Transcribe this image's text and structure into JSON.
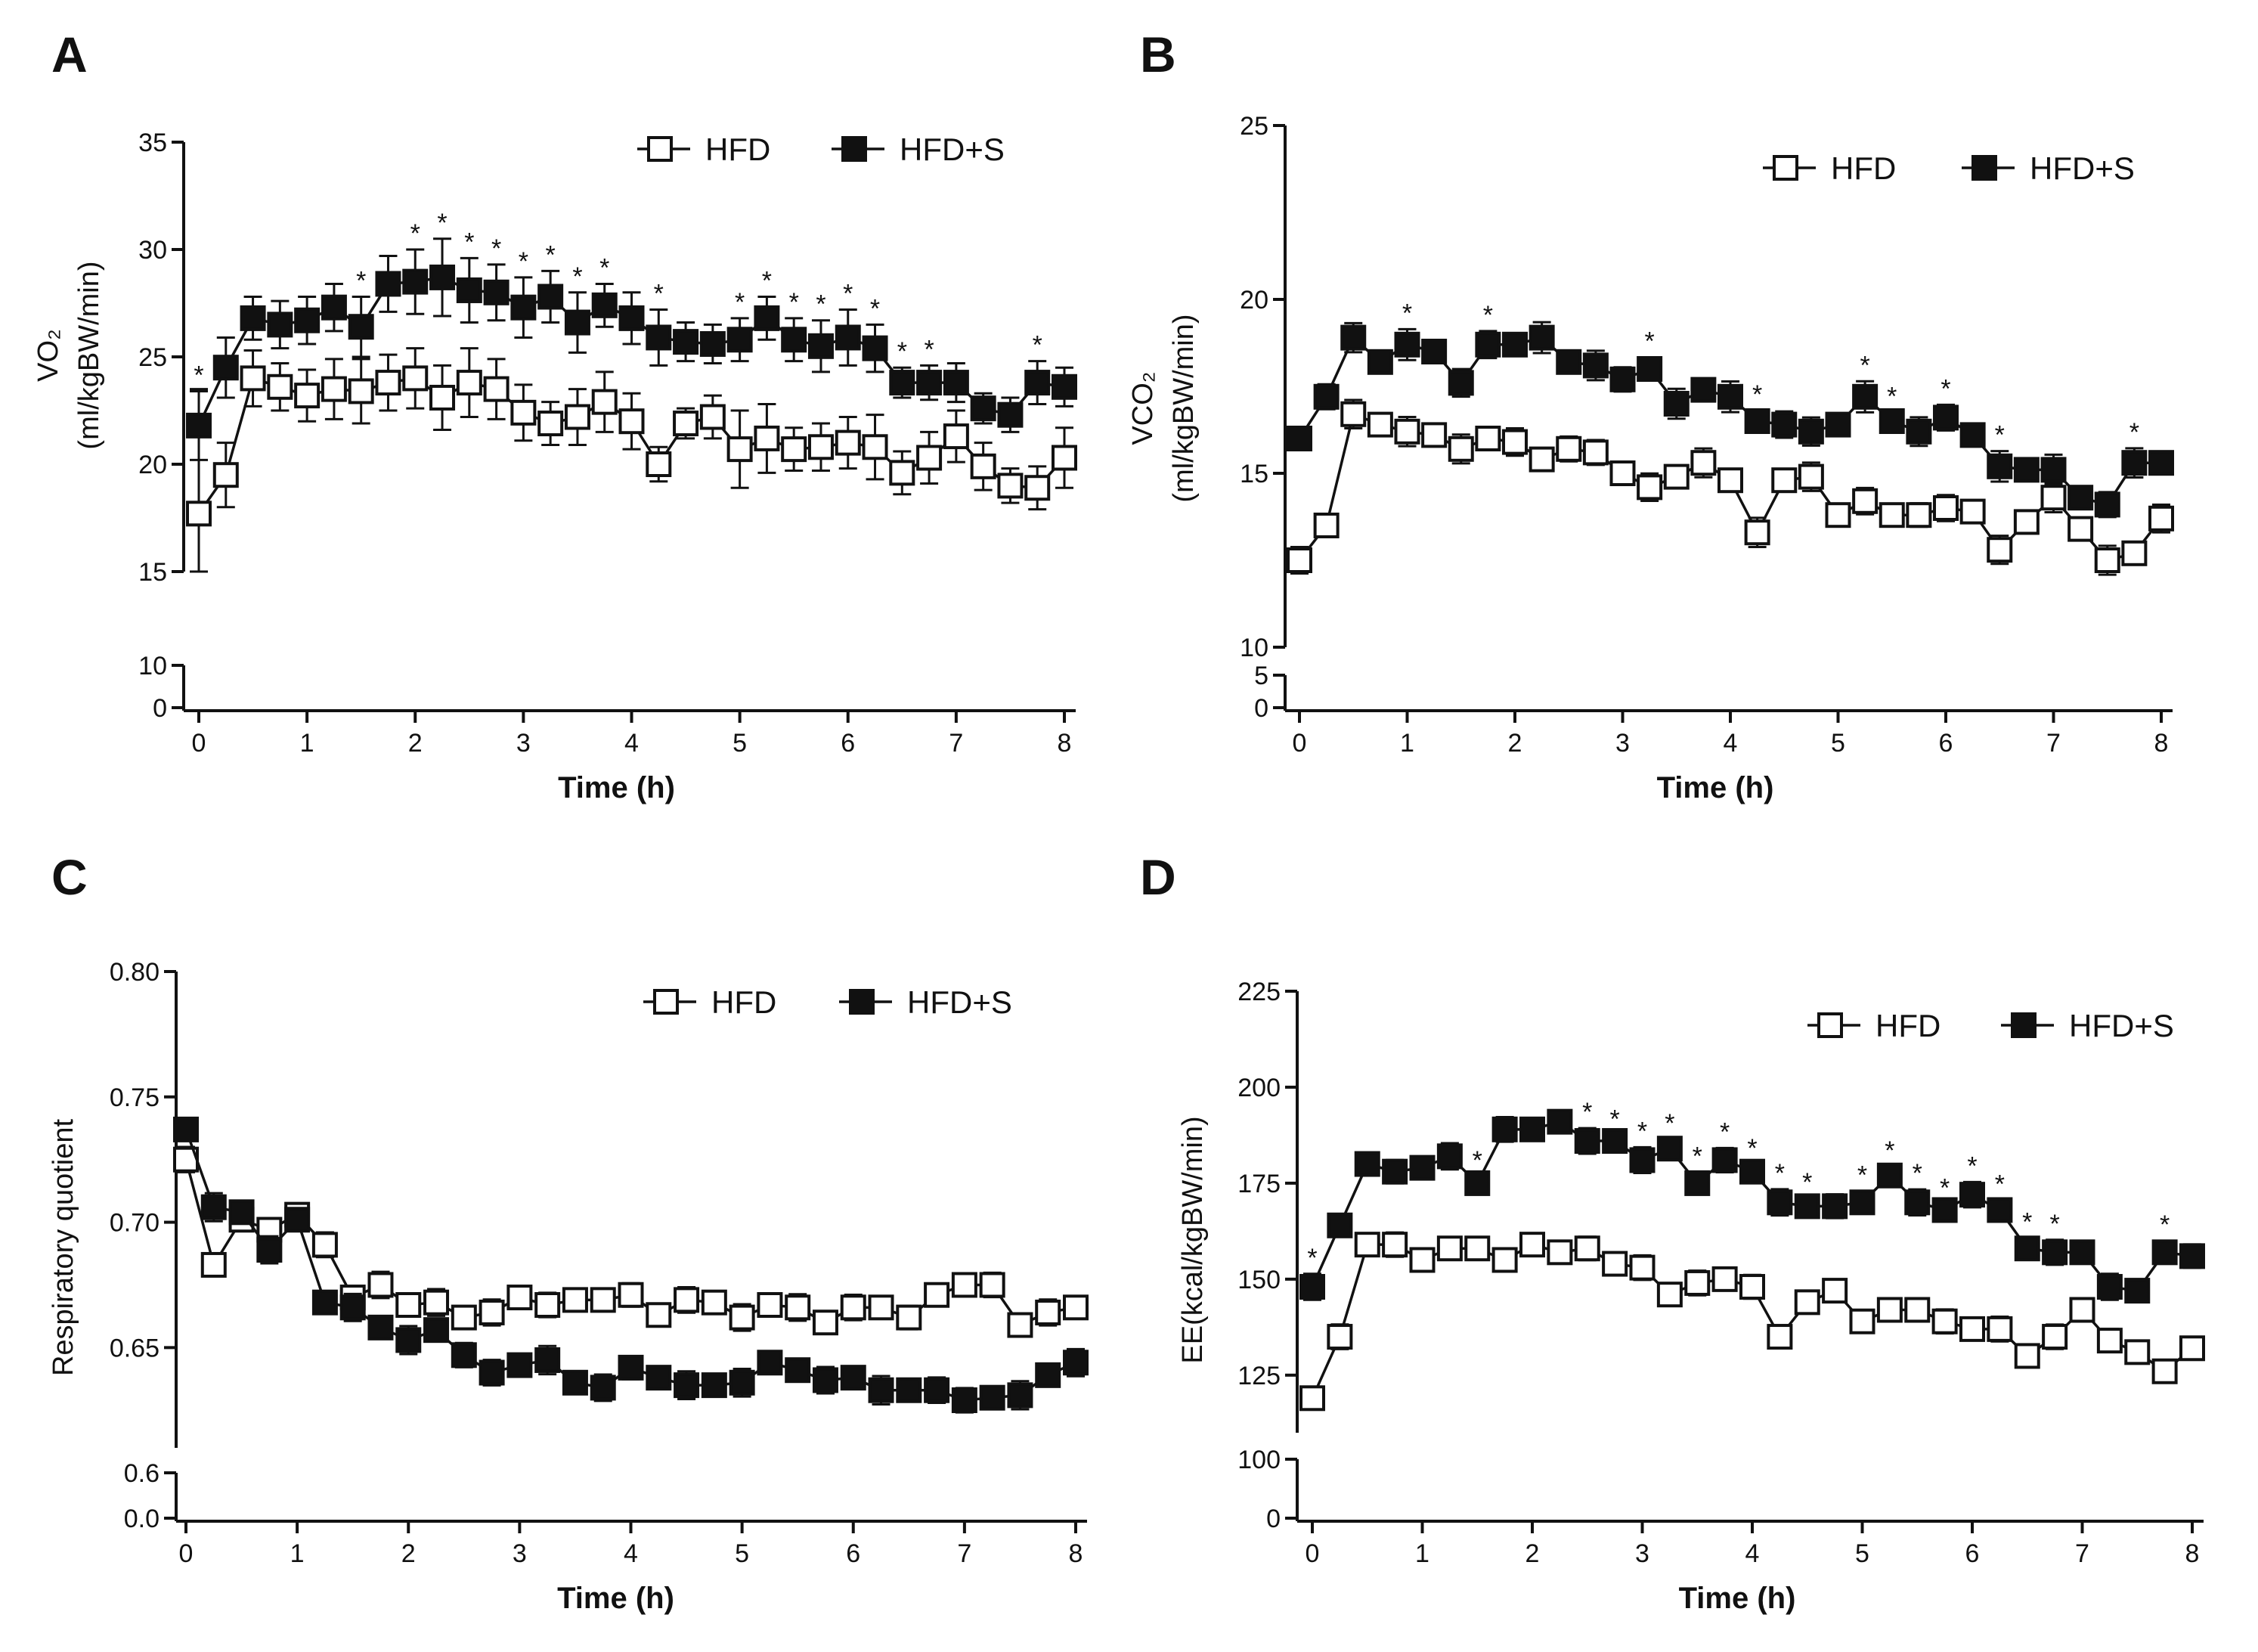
{
  "chart_data": [
    {
      "panel": "A",
      "type": "line",
      "ylabel_lines": [
        "VO₂",
        "(ml/kgBW/min)"
      ],
      "xlabel": "Time (h)",
      "x_ticks": [
        "0",
        "1",
        "2",
        "3",
        "4",
        "5",
        "6",
        "7",
        "8"
      ],
      "xlim": [
        0,
        8
      ],
      "y_broken": true,
      "y_lower_ticks": [
        "0",
        "10"
      ],
      "y_upper_ticks": [
        "15",
        "20",
        "25",
        "30",
        "35"
      ],
      "ylim_upper": [
        15,
        35
      ],
      "legend": [
        "HFD",
        "HFD+S"
      ],
      "x": [
        0,
        0.25,
        0.5,
        0.75,
        1,
        1.25,
        1.5,
        1.75,
        2,
        2.25,
        2.5,
        2.75,
        3,
        3.25,
        3.5,
        3.75,
        4,
        4.25,
        4.5,
        4.75,
        5,
        5.25,
        5.5,
        5.75,
        6,
        6.25,
        6.5,
        6.75,
        7,
        7.25,
        7.5,
        7.75,
        8
      ],
      "series": [
        {
          "name": "HFD",
          "marker": "open-square",
          "values": [
            17.7,
            19.5,
            24,
            23.6,
            23.2,
            23.5,
            23.4,
            23.8,
            24,
            23.1,
            23.8,
            23.5,
            22.4,
            21.9,
            22.2,
            22.9,
            22,
            20,
            21.9,
            22.2,
            20.7,
            21.2,
            20.7,
            20.8,
            21,
            20.8,
            19.6,
            20.3,
            21.3,
            19.9,
            19,
            18.9,
            20.3
          ],
          "errors": [
            5.8,
            1.5,
            1.3,
            1.1,
            1.2,
            1.4,
            1.5,
            1.3,
            1.4,
            1.5,
            1.6,
            1.4,
            1.3,
            1.0,
            1.3,
            1.4,
            1.3,
            0.8,
            0.7,
            1.0,
            1.8,
            1.6,
            1.0,
            1.1,
            1.2,
            1.5,
            1.0,
            1.2,
            1.2,
            1.1,
            0.8,
            1.0,
            1.4
          ]
        },
        {
          "name": "HFD+S",
          "marker": "filled-square",
          "values": [
            21.8,
            24.5,
            26.8,
            26.5,
            26.7,
            27.3,
            26.4,
            28.4,
            28.5,
            28.7,
            28.1,
            28,
            27.3,
            27.8,
            26.6,
            27.4,
            26.8,
            25.9,
            25.7,
            25.6,
            25.8,
            26.8,
            25.8,
            25.5,
            25.9,
            25.4,
            23.8,
            23.8,
            23.8,
            22.6,
            22.3,
            23.8,
            23.6
          ]
        },
        {
          "name": "HFD+S_err",
          "values": [
            1.6,
            1.4,
            1.0,
            1.1,
            1.1,
            1.1,
            1.4,
            1.3,
            1.5,
            1.8,
            1.5,
            1.3,
            1.4,
            1.2,
            1.4,
            1.0,
            1.2,
            1.3,
            0.9,
            0.9,
            1.0,
            1.0,
            1.0,
            1.2,
            1.3,
            1.1,
            0.7,
            0.8,
            0.9,
            0.7,
            0.8,
            1.0,
            0.9
          ]
        }
      ],
      "significance_marks": [
        0,
        1.5,
        2,
        2.25,
        2.5,
        2.75,
        3,
        3.25,
        3.5,
        3.75,
        4.25,
        5,
        5.25,
        5.5,
        5.75,
        6,
        6.25,
        6.5,
        6.75,
        7.75
      ],
      "significance_symbol": "*"
    },
    {
      "panel": "B",
      "type": "line",
      "ylabel_lines": [
        "VCO₂",
        "(ml/kgBW/min)"
      ],
      "xlabel": "Time (h)",
      "x_ticks": [
        "0",
        "1",
        "2",
        "3",
        "4",
        "5",
        "6",
        "7",
        "8"
      ],
      "xlim": [
        0,
        8
      ],
      "y_broken": true,
      "y_lower_ticks": [
        "0",
        "5"
      ],
      "y_upper_ticks": [
        "10",
        "15",
        "20",
        "25"
      ],
      "ylim_upper": [
        10,
        25
      ],
      "legend": [
        "HFD",
        "HFD+S"
      ],
      "x": [
        0,
        0.25,
        0.5,
        0.75,
        1,
        1.25,
        1.5,
        1.75,
        2,
        2.25,
        2.5,
        2.75,
        3,
        3.25,
        3.5,
        3.75,
        4,
        4.25,
        4.5,
        4.75,
        5,
        5.25,
        5.5,
        5.75,
        6,
        6.25,
        6.5,
        6.75,
        7,
        7.25,
        7.5,
        7.75,
        8
      ],
      "series": [
        {
          "name": "HFD",
          "marker": "open-square",
          "values": [
            12.5,
            13.5,
            16.7,
            16.4,
            16.2,
            16.1,
            15.7,
            16,
            15.9,
            15.4,
            15.7,
            15.6,
            15,
            14.6,
            14.9,
            15.3,
            14.8,
            13.3,
            14.8,
            14.9,
            13.8,
            14.2,
            13.8,
            13.8,
            14,
            13.9,
            12.8,
            13.6,
            14.3,
            13.4,
            12.5,
            12.7,
            13.7
          ]
        },
        {
          "name": "HFD+S",
          "marker": "filled-square",
          "values": [
            16,
            17.2,
            18.9,
            18.2,
            18.7,
            18.5,
            17.6,
            18.7,
            18.7,
            18.9,
            18.2,
            18.1,
            17.7,
            18,
            17,
            17.4,
            17.2,
            16.5,
            16.4,
            16.2,
            16.4,
            17.2,
            16.5,
            16.2,
            16.6,
            16.1,
            15.2,
            15.1,
            15.1,
            14.3,
            14.1,
            15.3,
            15.3
          ]
        }
      ],
      "significance_marks": [
        1,
        1.75,
        3.25,
        4.25,
        5.25,
        5.5,
        6,
        6.5,
        7.75
      ],
      "significance_symbol": "*"
    },
    {
      "panel": "C",
      "type": "line",
      "ylabel_lines": [
        "Respiratory quotient"
      ],
      "xlabel": "Time (h)",
      "x_ticks": [
        "0",
        "1",
        "2",
        "3",
        "4",
        "5",
        "6",
        "7",
        "8"
      ],
      "xlim": [
        0,
        8
      ],
      "y_broken": true,
      "y_lower_ticks": [
        "0.0",
        "0.6"
      ],
      "y_upper_ticks": [
        "0.65",
        "0.70",
        "0.75",
        "0.80"
      ],
      "ylim_upper": [
        0.61,
        0.8
      ],
      "legend": [
        "HFD",
        "HFD+S"
      ],
      "x": [
        0,
        0.25,
        0.5,
        0.75,
        1,
        1.25,
        1.5,
        1.75,
        2,
        2.25,
        2.5,
        2.75,
        3,
        3.25,
        3.5,
        3.75,
        4,
        4.25,
        4.5,
        4.75,
        5,
        5.25,
        5.5,
        5.75,
        6,
        6.25,
        6.5,
        6.75,
        7,
        7.25,
        7.5,
        7.75,
        8
      ],
      "series": [
        {
          "name": "HFD",
          "marker": "open-square",
          "values": [
            0.725,
            0.683,
            0.701,
            0.697,
            0.703,
            0.691,
            0.67,
            0.675,
            0.667,
            0.668,
            0.662,
            0.664,
            0.67,
            0.667,
            0.669,
            0.669,
            0.671,
            0.663,
            0.669,
            0.668,
            0.662,
            0.667,
            0.666,
            0.66,
            0.666,
            0.666,
            0.662,
            0.671,
            0.675,
            0.675,
            0.659,
            0.664,
            0.666
          ]
        },
        {
          "name": "HFD+S",
          "marker": "filled-square",
          "values": [
            0.737,
            0.706,
            0.704,
            0.689,
            0.701,
            0.668,
            0.666,
            0.658,
            0.653,
            0.657,
            0.647,
            0.64,
            0.643,
            0.645,
            0.636,
            0.634,
            0.642,
            0.638,
            0.635,
            0.635,
            0.636,
            0.644,
            0.641,
            0.637,
            0.638,
            0.633,
            0.633,
            0.633,
            0.629,
            0.63,
            0.631,
            0.639,
            0.644
          ]
        }
      ]
    },
    {
      "panel": "D",
      "type": "line",
      "ylabel_lines": [
        "EE(kcal/kgBW/min)"
      ],
      "xlabel": "Time (h)",
      "x_ticks": [
        "0",
        "1",
        "2",
        "3",
        "4",
        "5",
        "6",
        "7",
        "8"
      ],
      "xlim": [
        0,
        8
      ],
      "y_broken": true,
      "y_lower_ticks": [
        "0",
        "100"
      ],
      "y_upper_ticks": [
        "125",
        "150",
        "175",
        "200",
        "225"
      ],
      "ylim_upper": [
        110,
        225
      ],
      "legend": [
        "HFD",
        "HFD+S"
      ],
      "x": [
        0,
        0.25,
        0.5,
        0.75,
        1,
        1.25,
        1.5,
        1.75,
        2,
        2.25,
        2.5,
        2.75,
        3,
        3.25,
        3.5,
        3.75,
        4,
        4.25,
        4.5,
        4.75,
        5,
        5.25,
        5.5,
        5.75,
        6,
        6.25,
        6.5,
        6.75,
        7,
        7.25,
        7.5,
        7.75,
        8
      ],
      "series": [
        {
          "name": "HFD",
          "marker": "open-square",
          "values": [
            119,
            135,
            159,
            159,
            155,
            158,
            158,
            155,
            159,
            157,
            158,
            154,
            153,
            146,
            149,
            150,
            148,
            135,
            144,
            147,
            139,
            142,
            142,
            139,
            137,
            137,
            130,
            135,
            142,
            134,
            131,
            126,
            132
          ]
        },
        {
          "name": "HFD+S",
          "marker": "filled-square",
          "values": [
            148,
            164,
            180,
            178,
            179,
            182,
            175,
            189,
            189,
            191,
            186,
            186,
            181,
            184,
            175,
            181,
            178,
            170,
            169,
            169,
            170,
            177,
            170,
            168,
            172,
            168,
            158,
            157,
            157,
            148,
            147,
            157,
            156
          ]
        }
      ],
      "significance_marks": [
        0,
        1.5,
        2.5,
        2.75,
        3,
        3.25,
        3.5,
        3.75,
        4,
        4.25,
        4.5,
        5,
        5.25,
        5.5,
        5.75,
        6,
        6.25,
        6.5,
        6.75,
        7.75
      ],
      "significance_symbol": "*"
    }
  ]
}
